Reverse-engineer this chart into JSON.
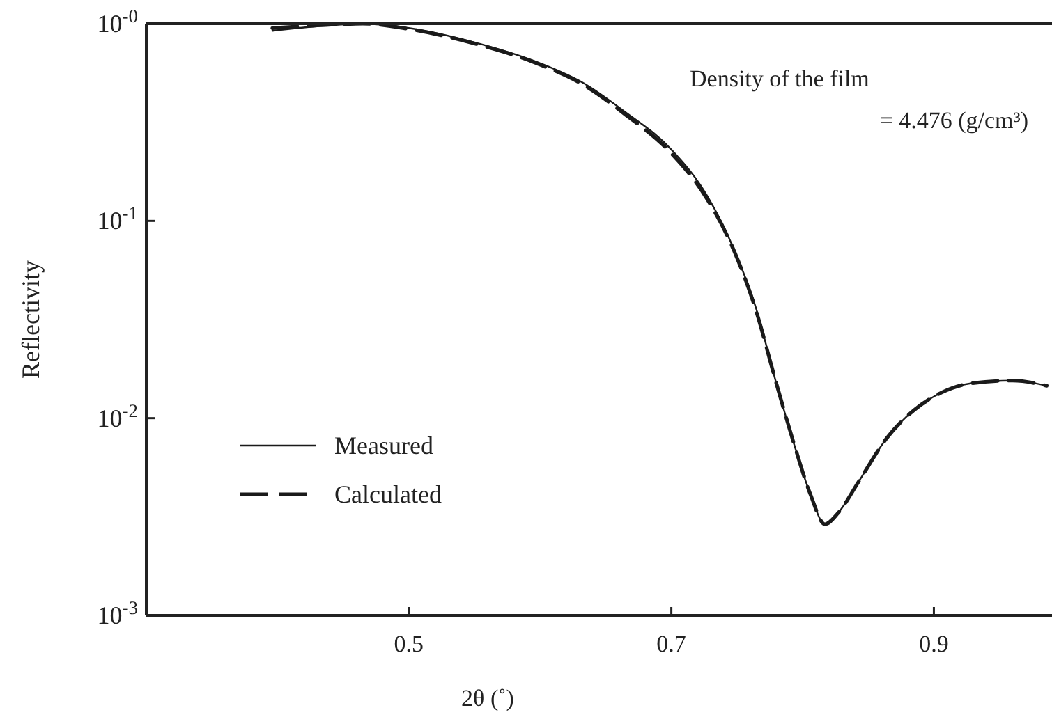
{
  "chart_data": {
    "type": "line",
    "xlabel": "2θ (˚)",
    "ylabel": "Reflectivity",
    "log": "y",
    "xlim": [
      0.3,
      0.99
    ],
    "ylim": [
      0.001,
      1
    ],
    "xticks": [
      0.5,
      0.7,
      0.9
    ],
    "yticks": [
      {
        "value": 1,
        "label": "10$^{-0}$"
      },
      {
        "value": 0.1,
        "label": "10$^{-1}$"
      },
      {
        "value": 0.01,
        "label": "10$^{-2}$"
      },
      {
        "value": 0.001,
        "label": "10$^{-3}$"
      }
    ],
    "grid": false,
    "legend": "left",
    "annotations": [
      "Density of the film",
      "= 4.476 (g/cm³)"
    ],
    "series": [
      {
        "name": "Measured",
        "color": "#1a1a1a",
        "line_style": "solid",
        "x": [
          0.396,
          0.43,
          0.465,
          0.5,
          0.548,
          0.6,
          0.633,
          0.664,
          0.7,
          0.727,
          0.748,
          0.764,
          0.78,
          0.794,
          0.806,
          0.817,
          0.827,
          0.843,
          0.864,
          0.885,
          0.906,
          0.928,
          0.96,
          0.986
        ],
        "values": [
          0.92,
          0.97,
          1.0,
          0.95,
          0.81,
          0.63,
          0.5,
          0.36,
          0.23,
          0.135,
          0.071,
          0.037,
          0.015,
          0.0072,
          0.0041,
          0.0029,
          0.0033,
          0.0048,
          0.0079,
          0.011,
          0.0135,
          0.015,
          0.0155,
          0.0146
        ]
      },
      {
        "name": "Calculated",
        "color": "#1a1a1a",
        "line_style": "dashed",
        "x": [
          0.396,
          0.43,
          0.465,
          0.5,
          0.548,
          0.6,
          0.633,
          0.664,
          0.7,
          0.727,
          0.748,
          0.764,
          0.78,
          0.794,
          0.806,
          0.817,
          0.827,
          0.843,
          0.864,
          0.885,
          0.906,
          0.928,
          0.96,
          0.986
        ],
        "values": [
          0.95,
          0.98,
          1.0,
          0.94,
          0.8,
          0.62,
          0.49,
          0.35,
          0.22,
          0.13,
          0.07,
          0.036,
          0.015,
          0.0072,
          0.0041,
          0.0029,
          0.0033,
          0.0048,
          0.0079,
          0.011,
          0.0135,
          0.015,
          0.0155,
          0.0146
        ]
      }
    ]
  }
}
